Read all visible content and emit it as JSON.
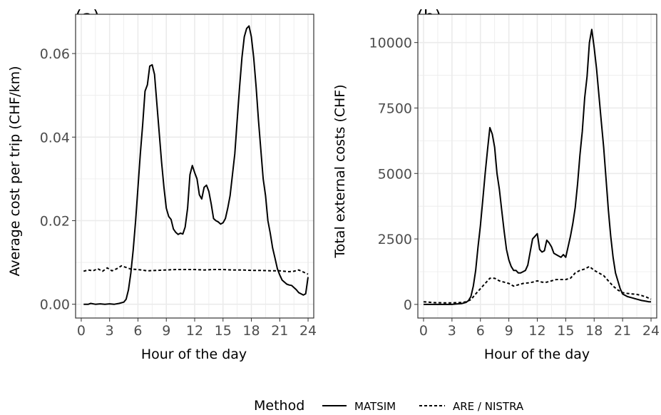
{
  "legend": {
    "title": "Method",
    "items": [
      {
        "label": "MATSIM",
        "dash": "solid"
      },
      {
        "label": "ARE / NISTRA",
        "dash": "dashed"
      }
    ]
  },
  "colors": {
    "panel_bg": "#ffffff",
    "grid": "#ebebeb",
    "border": "#333333",
    "line": "#000000",
    "ticks": "#4d4d4d"
  },
  "chart_data": [
    {
      "type": "line",
      "panel_label": "(a)",
      "xlabel": "Hour of the day",
      "ylabel": "Average cost per trip (CHF/km)",
      "xlim": [
        -0.6,
        24.6
      ],
      "ylim": [
        -0.0033,
        0.0694
      ],
      "xticks": [
        0,
        3,
        6,
        9,
        12,
        15,
        18,
        21,
        24
      ],
      "yticks": [
        0,
        0.02,
        0.04,
        0.06
      ],
      "ytick_labels": [
        "0.00",
        "0.02",
        "0.04",
        "0.06"
      ],
      "grid": true,
      "series": [
        {
          "name": "MATSIM",
          "dash": "solid",
          "x": [
            0.25,
            0.75,
            1,
            1.5,
            2,
            2.5,
            3,
            3.5,
            4,
            4.5,
            4.75,
            5,
            5.25,
            5.5,
            5.75,
            6,
            6.25,
            6.5,
            6.75,
            7,
            7.25,
            7.5,
            7.75,
            8,
            8.25,
            8.5,
            8.75,
            9,
            9.25,
            9.5,
            9.75,
            10,
            10.25,
            10.5,
            10.75,
            11,
            11.25,
            11.5,
            11.75,
            12,
            12.25,
            12.5,
            12.75,
            13,
            13.25,
            13.5,
            13.75,
            14,
            14.25,
            14.5,
            14.75,
            15,
            15.25,
            15.5,
            15.75,
            16,
            16.25,
            16.5,
            16.75,
            17,
            17.25,
            17.5,
            17.75,
            18,
            18.25,
            18.5,
            18.75,
            19,
            19.25,
            19.5,
            19.75,
            20,
            20.25,
            20.5,
            20.75,
            21,
            21.25,
            21.5,
            21.75,
            22,
            22.25,
            22.5,
            22.75,
            23,
            23.25,
            23.5,
            23.75
          ],
          "y": [
            0,
            0,
            0.0002,
            0,
            0.0001,
            0,
            0.0001,
            0,
            0.0002,
            0.0005,
            0.0012,
            0.0035,
            0.0075,
            0.013,
            0.02,
            0.028,
            0.036,
            0.043,
            0.051,
            0.0525,
            0.057,
            0.0573,
            0.055,
            0.048,
            0.041,
            0.034,
            0.028,
            0.023,
            0.021,
            0.0203,
            0.018,
            0.0172,
            0.0167,
            0.017,
            0.0168,
            0.0185,
            0.023,
            0.031,
            0.0332,
            0.0315,
            0.03,
            0.0262,
            0.0252,
            0.028,
            0.0285,
            0.027,
            0.024,
            0.0205,
            0.02,
            0.0197,
            0.0192,
            0.0195,
            0.0205,
            0.023,
            0.026,
            0.031,
            0.036,
            0.044,
            0.052,
            0.059,
            0.064,
            0.066,
            0.0666,
            0.064,
            0.059,
            0.052,
            0.044,
            0.037,
            0.03,
            0.026,
            0.02,
            0.017,
            0.0135,
            0.011,
            0.0085,
            0.007,
            0.0058,
            0.0053,
            0.0048,
            0.0046,
            0.0045,
            0.004,
            0.0035,
            0.0028,
            0.0025,
            0.0022,
            0.0025
          ],
          "tail": {
            "x": [
              23.75,
              24
            ],
            "y": [
              0.0025,
              0.0065
            ]
          }
        },
        {
          "name": "ARE / NISTRA",
          "dash": "dashed",
          "x": [
            0.25,
            0.75,
            1.25,
            1.75,
            2.25,
            2.75,
            3.25,
            3.75,
            4.25,
            4.75,
            5.25,
            6,
            7,
            8,
            9,
            10,
            11,
            12,
            13,
            14,
            15,
            16,
            17,
            18,
            19,
            20,
            21,
            22,
            22.5,
            23,
            23.5,
            24
          ],
          "y": [
            0.0079,
            0.0082,
            0.008,
            0.0085,
            0.0079,
            0.0087,
            0.008,
            0.0085,
            0.0092,
            0.0088,
            0.0084,
            0.0083,
            0.008,
            0.0081,
            0.0082,
            0.0083,
            0.0083,
            0.0083,
            0.0082,
            0.0083,
            0.0083,
            0.0082,
            0.0082,
            0.0081,
            0.0081,
            0.008,
            0.008,
            0.0078,
            0.0079,
            0.0082,
            0.0077,
            0.0072
          ]
        }
      ]
    },
    {
      "type": "line",
      "panel_label": "(b)",
      "xlabel": "Hour of the day",
      "ylabel": "Total external costs (CHF)",
      "xlim": [
        -0.6,
        24.6
      ],
      "ylim": [
        -520,
        11080
      ],
      "xticks": [
        0,
        3,
        6,
        9,
        12,
        15,
        18,
        21,
        24
      ],
      "yticks": [
        0,
        2500,
        5000,
        7500,
        10000
      ],
      "ytick_labels": [
        "0",
        "2500",
        "5000",
        "7500",
        "10000"
      ],
      "grid": true,
      "series": [
        {
          "name": "MATSIM",
          "dash": "solid",
          "x": [
            0,
            1,
            2,
            3,
            3.5,
            4,
            4.5,
            4.75,
            5,
            5.25,
            5.5,
            5.75,
            6,
            6.25,
            6.5,
            6.75,
            7,
            7.25,
            7.5,
            7.75,
            8,
            8.25,
            8.5,
            8.75,
            9,
            9.25,
            9.5,
            9.75,
            10,
            10.25,
            10.5,
            10.75,
            11,
            11.25,
            11.5,
            11.75,
            12,
            12.25,
            12.5,
            12.75,
            13,
            13.25,
            13.5,
            13.75,
            14,
            14.25,
            14.5,
            14.75,
            15,
            15.25,
            15.5,
            15.75,
            16,
            16.25,
            16.5,
            16.75,
            17,
            17.25,
            17.5,
            17.75,
            18,
            18.25,
            18.5,
            18.75,
            19,
            19.25,
            19.5,
            19.75,
            20,
            20.25,
            20.5,
            20.75,
            21,
            21.5,
            22,
            22.5,
            23,
            23.5,
            23.75,
            24
          ],
          "y": [
            0,
            0,
            0,
            0,
            20,
            30,
            80,
            150,
            300,
            700,
            1300,
            2200,
            3000,
            4000,
            5000,
            5900,
            6750,
            6500,
            6000,
            5000,
            4400,
            3600,
            2800,
            2100,
            1700,
            1450,
            1300,
            1300,
            1200,
            1200,
            1250,
            1300,
            1500,
            2000,
            2500,
            2600,
            2700,
            2100,
            2000,
            2050,
            2450,
            2350,
            2200,
            1950,
            1900,
            1850,
            1800,
            1900,
            1800,
            2200,
            2600,
            3100,
            3700,
            4600,
            5700,
            6600,
            7900,
            8700,
            10000,
            10500,
            9800,
            9000,
            8000,
            7000,
            6000,
            4800,
            3600,
            2600,
            1800,
            1200,
            900,
            600,
            400,
            300,
            250,
            200,
            150,
            120,
            100,
            100
          ]
        },
        {
          "name": "ARE / NISTRA",
          "dash": "dashed",
          "x": [
            0,
            1,
            2,
            3,
            4,
            4.5,
            5,
            5.5,
            6,
            6.5,
            7,
            7.5,
            8,
            8.5,
            9,
            9.5,
            10,
            10.5,
            11,
            11.5,
            12,
            12.5,
            13,
            13.5,
            14,
            14.5,
            15,
            15.5,
            16,
            16.5,
            17,
            17.5,
            18,
            18.5,
            19,
            19.5,
            20,
            20.5,
            21,
            21.5,
            22,
            22.5,
            23,
            23.5,
            24
          ],
          "y": [
            100,
            70,
            60,
            60,
            70,
            100,
            180,
            400,
            600,
            800,
            1000,
            1000,
            900,
            850,
            800,
            700,
            750,
            800,
            820,
            850,
            900,
            850,
            850,
            900,
            950,
            950,
            950,
            1000,
            1200,
            1300,
            1350,
            1450,
            1300,
            1200,
            1100,
            900,
            700,
            550,
            450,
            420,
            400,
            380,
            340,
            280,
            200
          ]
        }
      ]
    }
  ]
}
